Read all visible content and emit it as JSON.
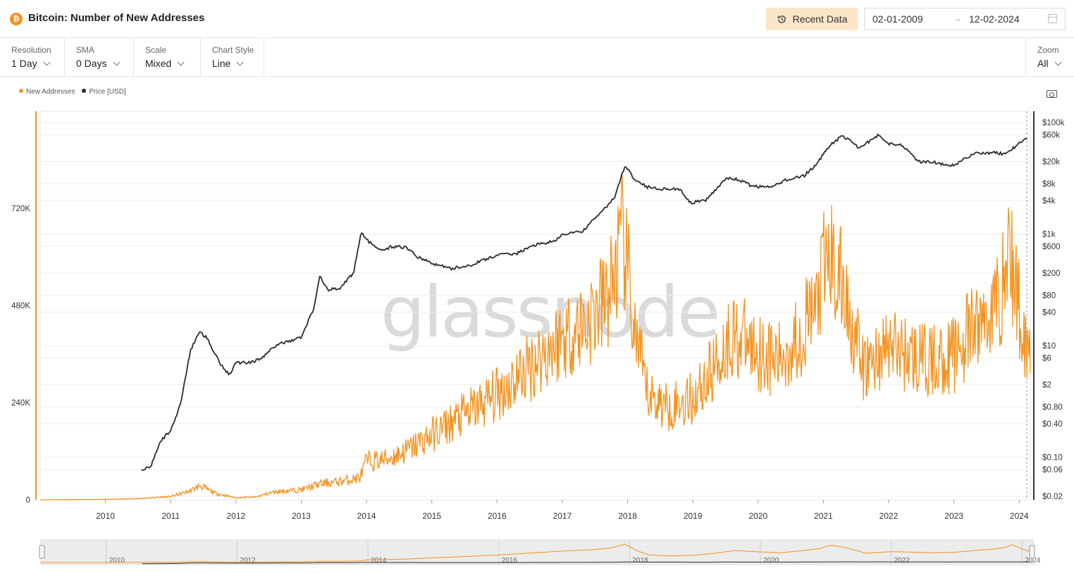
{
  "header": {
    "coin_icon": "bitcoin-icon",
    "title": "Bitcoin: Number of New Addresses",
    "recent_button": "Recent Data",
    "date_start": "02-01-2009",
    "date_arrow": "→",
    "date_end": "12-02-2024"
  },
  "controls": [
    {
      "label": "Resolution",
      "value": "1 Day"
    },
    {
      "label": "SMA",
      "value": "0 Days"
    },
    {
      "label": "Scale",
      "value": "Mixed"
    },
    {
      "label": "Chart Style",
      "value": "Line"
    }
  ],
  "zoom": {
    "label": "Zoom",
    "value": "All"
  },
  "watermark": "glassnode",
  "colors": {
    "addresses": "#f39321",
    "price": "#2b2b2b",
    "grid": "#ececec",
    "nav_bg": "#ececec"
  },
  "chart_data": {
    "type": "line",
    "title": "Bitcoin: Number of New Addresses",
    "legend": [
      "New Addresses",
      "Price [USD]"
    ],
    "x_ticks": [
      "2010",
      "2011",
      "2012",
      "2013",
      "2014",
      "2015",
      "2016",
      "2017",
      "2018",
      "2019",
      "2020",
      "2021",
      "2022",
      "2023",
      "2024"
    ],
    "x_range": [
      2009.0,
      2024.17
    ],
    "y_left": {
      "label": "New Addresses",
      "ticks": [
        "0",
        "240K",
        "480K",
        "720K"
      ],
      "tick_values": [
        0,
        240000,
        480000,
        720000
      ],
      "range": [
        0,
        960000
      ]
    },
    "y_right": {
      "label": "Price [USD]",
      "scale": "log",
      "ticks": [
        "$100k",
        "$60k",
        "$20k",
        "$8k",
        "$4k",
        "$1k",
        "$600",
        "$200",
        "$80",
        "$40",
        "$10",
        "$6",
        "$2",
        "$0.80",
        "$0.40",
        "$0.10",
        "$0.06",
        "$0.02"
      ],
      "tick_values": [
        100000,
        60000,
        20000,
        8000,
        4000,
        1000,
        600,
        200,
        80,
        40,
        10,
        6,
        2,
        0.8,
        0.4,
        0.1,
        0.06,
        0.02
      ]
    },
    "series": [
      {
        "name": "New Addresses",
        "axis": "left",
        "x": [
          2009.0,
          2010.0,
          2010.5,
          2011.0,
          2011.3,
          2011.45,
          2011.7,
          2012.0,
          2012.3,
          2012.6,
          2013.0,
          2013.3,
          2013.6,
          2013.9,
          2014.0,
          2014.3,
          2014.6,
          2015.0,
          2015.5,
          2016.0,
          2016.5,
          2017.0,
          2017.4,
          2017.7,
          2017.93,
          2018.0,
          2018.1,
          2018.3,
          2018.6,
          2019.0,
          2019.3,
          2019.6,
          2020.0,
          2020.3,
          2020.6,
          2020.9,
          2021.0,
          2021.1,
          2021.3,
          2021.45,
          2021.6,
          2021.8,
          2022.0,
          2022.3,
          2022.6,
          2022.9,
          2023.0,
          2023.3,
          2023.6,
          2023.75,
          2023.85,
          2024.0,
          2024.12
        ],
        "y": [
          0,
          1000,
          3000,
          8000,
          22000,
          35000,
          15000,
          5000,
          7000,
          20000,
          25000,
          40000,
          45000,
          55000,
          95000,
          100000,
          120000,
          160000,
          210000,
          260000,
          330000,
          400000,
          440000,
          500000,
          640000,
          560000,
          420000,
          260000,
          230000,
          250000,
          320000,
          410000,
          370000,
          340000,
          400000,
          480000,
          560000,
          600000,
          520000,
          430000,
          320000,
          350000,
          380000,
          360000,
          340000,
          350000,
          360000,
          420000,
          470000,
          530000,
          620000,
          470000,
          380000
        ]
      },
      {
        "name": "Price [USD]",
        "axis": "right",
        "x": [
          2010.55,
          2010.7,
          2010.85,
          2011.0,
          2011.15,
          2011.3,
          2011.44,
          2011.55,
          2011.75,
          2011.9,
          2012.0,
          2012.2,
          2012.4,
          2012.6,
          2012.8,
          2013.0,
          2013.2,
          2013.28,
          2013.4,
          2013.6,
          2013.8,
          2013.92,
          2014.0,
          2014.2,
          2014.4,
          2014.6,
          2014.8,
          2015.0,
          2015.3,
          2015.6,
          2015.9,
          2016.0,
          2016.3,
          2016.6,
          2016.9,
          2017.0,
          2017.3,
          2017.6,
          2017.8,
          2017.96,
          2018.1,
          2018.3,
          2018.5,
          2018.8,
          2018.95,
          2019.2,
          2019.5,
          2019.7,
          2019.9,
          2020.2,
          2020.4,
          2020.7,
          2020.9,
          2021.1,
          2021.3,
          2021.55,
          2021.85,
          2022.0,
          2022.2,
          2022.45,
          2022.7,
          2022.9,
          2023.0,
          2023.3,
          2023.6,
          2023.8,
          2024.0,
          2024.12
        ],
        "y": [
          0.06,
          0.07,
          0.2,
          0.3,
          0.9,
          8,
          18,
          14,
          5,
          3,
          5,
          5,
          6,
          10,
          12,
          14,
          50,
          180,
          100,
          110,
          200,
          1100,
          800,
          500,
          600,
          580,
          380,
          300,
          240,
          280,
          380,
          420,
          450,
          650,
          750,
          1000,
          1100,
          2500,
          4500,
          17000,
          10000,
          7000,
          6500,
          6400,
          3600,
          4000,
          10000,
          9500,
          7300,
          6800,
          9200,
          11000,
          18000,
          40000,
          58000,
          35000,
          60000,
          42000,
          40000,
          20000,
          19500,
          16500,
          17000,
          28000,
          29000,
          27000,
          43000,
          50000
        ]
      }
    ]
  }
}
